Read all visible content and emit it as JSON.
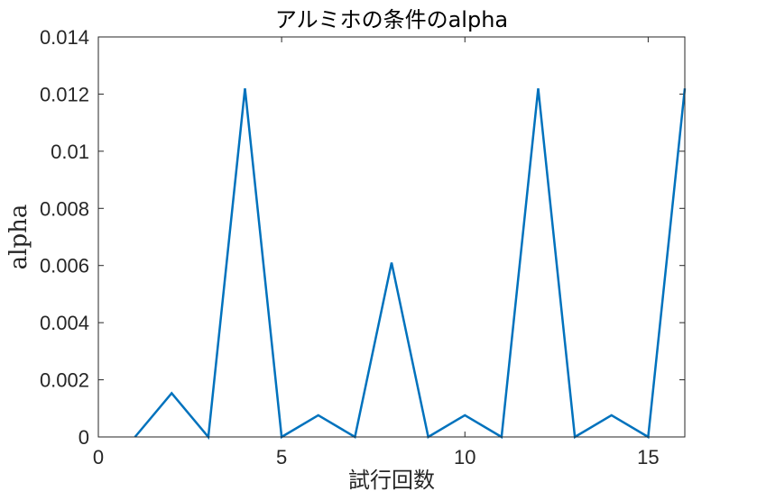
{
  "chart_data": {
    "type": "line",
    "title": "アルミホの条件のalpha",
    "xlabel": "試行回数",
    "ylabel": "alpha",
    "xlim": [
      0,
      16
    ],
    "ylim": [
      0,
      0.014
    ],
    "x_ticks": [
      0,
      5,
      10,
      15
    ],
    "x_tick_labels": [
      "0",
      "5",
      "10",
      "15"
    ],
    "y_ticks": [
      0,
      0.002,
      0.004,
      0.006,
      0.008,
      0.01,
      0.012,
      0.014
    ],
    "y_tick_labels": [
      "0",
      "0.002",
      "0.004",
      "0.006",
      "0.008",
      "0.01",
      "0.012",
      "0.014"
    ],
    "grid": false,
    "legend": "none",
    "series": [
      {
        "color": "#0072BD",
        "x": [
          1,
          2,
          3,
          4,
          5,
          6,
          7,
          8,
          9,
          10,
          11,
          12,
          13,
          14,
          15,
          16
        ],
        "y": [
          0,
          0.00153,
          0,
          0.0122,
          0,
          0.00076,
          0,
          0.0061,
          0,
          0.00076,
          0,
          0.0122,
          0,
          0.00076,
          0,
          0.0122
        ]
      }
    ]
  }
}
